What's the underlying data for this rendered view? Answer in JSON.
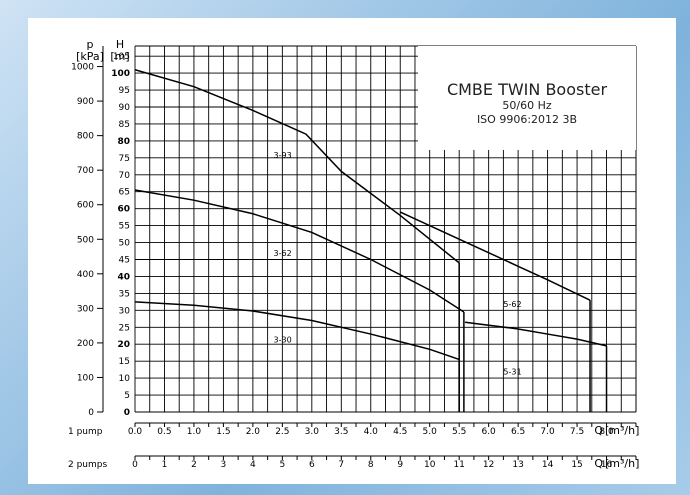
{
  "chart_data": {
    "type": "line",
    "title": "CMBE TWIN Booster",
    "subtitle_lines": [
      "50/60 Hz",
      "ISO 9906:2012 3B"
    ],
    "y_left_label": "p",
    "y_left_unit": "[kPa]",
    "y_right_label": "H",
    "y_right_unit": "[m]",
    "x1_row_label": "1 pump",
    "x2_row_label": "2 pumps",
    "x_axis_label": "Q",
    "x_axis_unit": "[m³/h]",
    "ylim_m": [
      0,
      108
    ],
    "xlim_1pump": [
      0,
      8.5
    ],
    "kpa_ticks": [
      "0",
      "100",
      "200",
      "300",
      "400",
      "500",
      "600",
      "700",
      "800",
      "900",
      "1000"
    ],
    "m_ticks": [
      "0",
      "5",
      "10",
      "15",
      "20",
      "25",
      "30",
      "35",
      "40",
      "45",
      "50",
      "55",
      "60",
      "65",
      "70",
      "75",
      "80",
      "85",
      "90",
      "95",
      "100",
      "105"
    ],
    "x1_ticks": [
      "0.0",
      "0.5",
      "1.0",
      "1.5",
      "2.0",
      "2.5",
      "3.0",
      "3.5",
      "4.0",
      "4.5",
      "5.0",
      "5.5",
      "6.0",
      "6.5",
      "7.0",
      "7.5",
      "8.0"
    ],
    "x2_ticks": [
      "0",
      "1",
      "2",
      "3",
      "4",
      "5",
      "6",
      "7",
      "8",
      "9",
      "10",
      "11",
      "12",
      "13",
      "14",
      "15",
      "16"
    ],
    "series": [
      {
        "name": "3-93",
        "x": [
          0,
          1.0,
          2.0,
          2.9,
          3.5,
          4.5,
          5.5
        ],
        "y": [
          101,
          96,
          89,
          82,
          71,
          58,
          44
        ]
      },
      {
        "name": "3-62",
        "x": [
          0,
          1.0,
          2.0,
          3.0,
          4.0,
          5.0,
          5.58
        ],
        "y": [
          65.5,
          62.5,
          58.5,
          53,
          45,
          36,
          29.5
        ]
      },
      {
        "name": "3-30",
        "x": [
          0,
          1.0,
          2.0,
          3.0,
          4.0,
          5.0,
          5.5
        ],
        "y": [
          32.5,
          31.5,
          29.8,
          27,
          23,
          18.5,
          15.5
        ]
      },
      {
        "name": "5-62",
        "x": [
          4.5,
          5.5,
          6.5,
          7.0,
          7.72
        ],
        "y": [
          59,
          51,
          43,
          39,
          33
        ]
      },
      {
        "name": "5-31",
        "x": [
          5.6,
          6.5,
          7.0,
          7.5,
          8.0
        ],
        "y": [
          26.5,
          24.5,
          23,
          21.5,
          19.5
        ]
      }
    ],
    "grid": true
  },
  "colors": {
    "grid": "#000000",
    "curve": "#000000",
    "background": "#ffffff"
  }
}
